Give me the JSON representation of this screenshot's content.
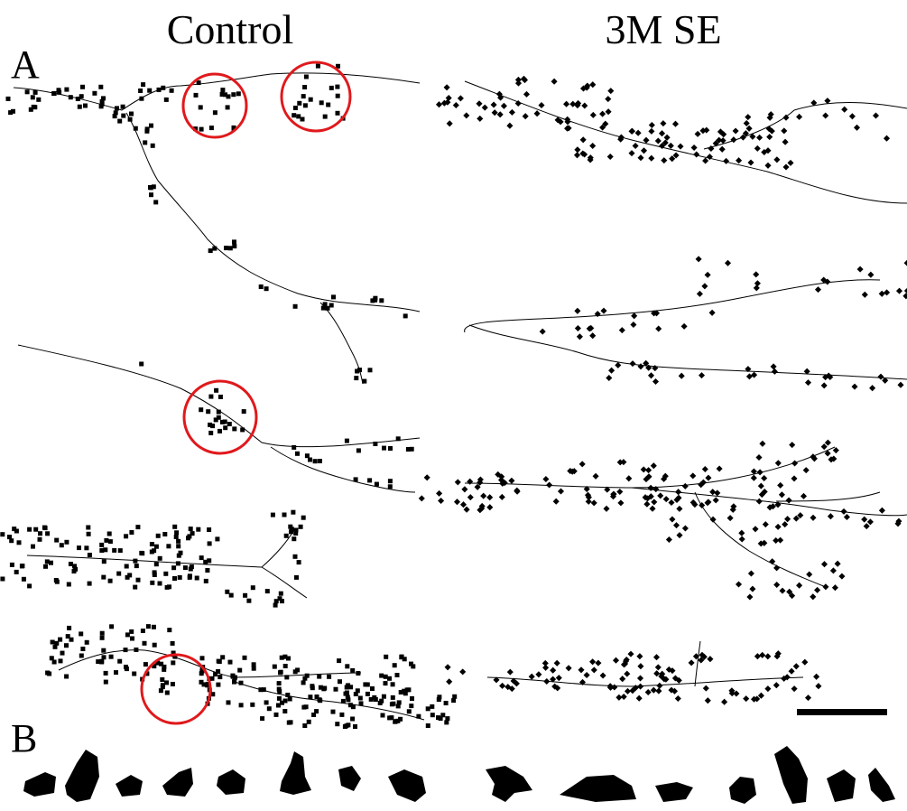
{
  "columns": [
    "Control",
    "3M SE"
  ],
  "panels": [
    "A",
    "B"
  ]
}
